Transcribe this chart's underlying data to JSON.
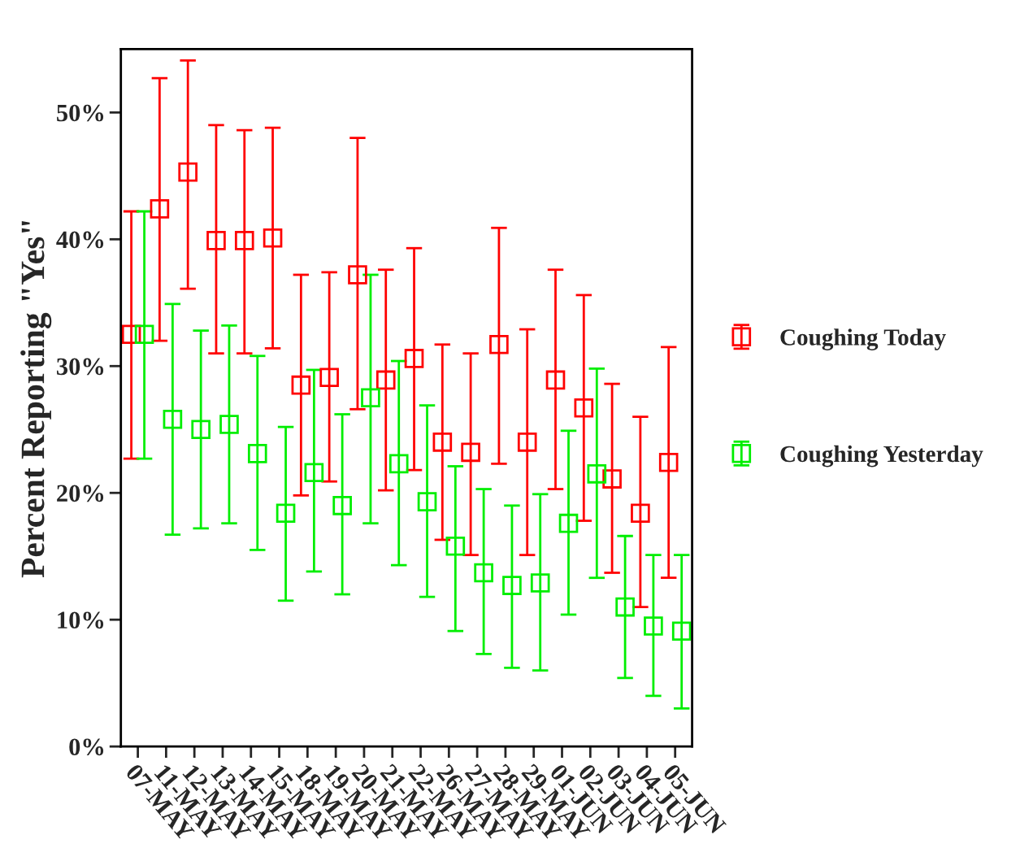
{
  "chart_data": {
    "type": "scatter",
    "ylabel": "Percent Reporting \"Yes\"",
    "categories": [
      "07-MAY",
      "11-MAY",
      "12-MAY",
      "13-MAY",
      "14-MAY",
      "15-MAY",
      "18-MAY",
      "19-MAY",
      "20-MAY",
      "21-MAY",
      "22-MAY",
      "26-MAY",
      "27-MAY",
      "28-MAY",
      "29-MAY",
      "01-JUN",
      "02-JUN",
      "03-JUN",
      "04-JUN",
      "05-JUN"
    ],
    "series": [
      {
        "name": "Coughing Today",
        "color": "#ff0000",
        "values": [
          32.5,
          42.4,
          45.3,
          39.9,
          39.9,
          40.1,
          28.5,
          29.1,
          37.2,
          28.9,
          30.6,
          24.0,
          23.2,
          31.7,
          24.0,
          28.9,
          26.7,
          21.1,
          18.4,
          22.4
        ],
        "errors": [
          [
            22.7,
            42.2
          ],
          [
            32.0,
            52.7
          ],
          [
            36.1,
            54.1
          ],
          [
            31.0,
            49.0
          ],
          [
            31.0,
            48.6
          ],
          [
            31.4,
            48.8
          ],
          [
            19.8,
            37.2
          ],
          [
            20.9,
            37.4
          ],
          [
            26.6,
            48.0
          ],
          [
            20.2,
            37.6
          ],
          [
            21.8,
            39.3
          ],
          [
            16.3,
            31.7
          ],
          [
            15.1,
            31.0
          ],
          [
            22.3,
            40.9
          ],
          [
            15.1,
            32.9
          ],
          [
            20.3,
            37.6
          ],
          [
            17.8,
            35.6
          ],
          [
            13.7,
            28.6
          ],
          [
            11.0,
            26.0
          ],
          [
            13.3,
            31.5
          ]
        ]
      },
      {
        "name": "Coughing Yesterday",
        "color": "#00ee00",
        "values": [
          32.5,
          25.8,
          25.0,
          25.4,
          23.1,
          18.4,
          21.6,
          19.0,
          27.5,
          22.3,
          19.3,
          15.8,
          13.7,
          12.7,
          12.9,
          17.6,
          21.5,
          11.0,
          9.5,
          9.1
        ],
        "errors": [
          [
            22.7,
            42.2
          ],
          [
            16.7,
            34.9
          ],
          [
            17.2,
            32.8
          ],
          [
            17.6,
            33.2
          ],
          [
            15.5,
            30.8
          ],
          [
            11.5,
            25.2
          ],
          [
            13.8,
            29.7
          ],
          [
            12.0,
            26.2
          ],
          [
            17.6,
            37.2
          ],
          [
            14.3,
            30.4
          ],
          [
            11.8,
            26.9
          ],
          [
            9.1,
            22.1
          ],
          [
            7.3,
            20.3
          ],
          [
            6.2,
            19.0
          ],
          [
            6.0,
            19.9
          ],
          [
            10.4,
            24.9
          ],
          [
            13.3,
            29.8
          ],
          [
            5.4,
            16.6
          ],
          [
            4.0,
            15.1
          ],
          [
            3.0,
            15.1
          ]
        ]
      }
    ],
    "ylim": [
      0,
      55
    ],
    "yticks": [
      {
        "value": 0,
        "label": "0%"
      },
      {
        "value": 10,
        "label": "10%"
      },
      {
        "value": 20,
        "label": "20%"
      },
      {
        "value": 30,
        "label": "30%"
      },
      {
        "value": 40,
        "label": "40%"
      },
      {
        "value": 50,
        "label": "50%"
      }
    ],
    "marker": "square",
    "legend": "right",
    "grid": false
  }
}
